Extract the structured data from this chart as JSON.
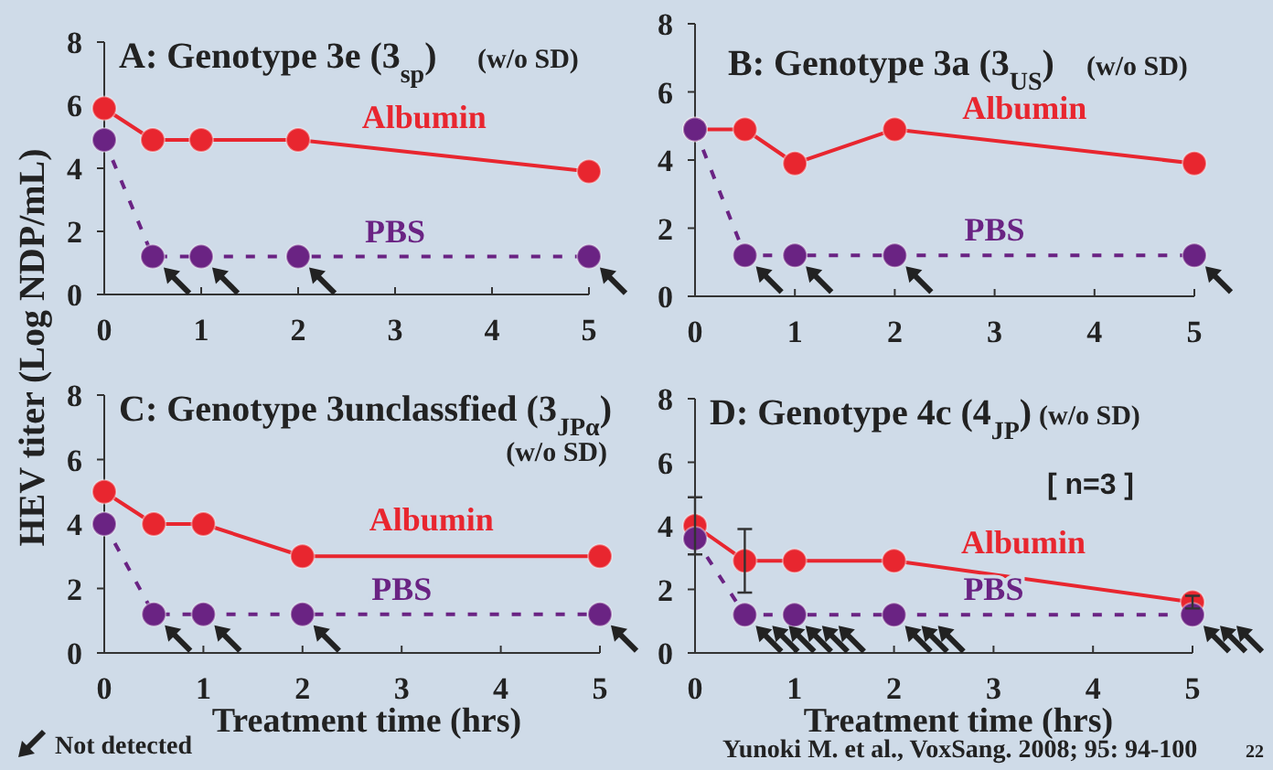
{
  "chart_data": [
    {
      "type": "line",
      "title": "A: Genotype 3e (3$_{sp}$)",
      "subtitle": "(w/o SD)",
      "ylabel": "HEV titer (Log NDP/mL)",
      "x": [
        0,
        0.5,
        1,
        2,
        5
      ],
      "xlim": [
        0,
        5
      ],
      "xticks": [
        0,
        1,
        2,
        3,
        4,
        5
      ],
      "ylim": [
        0,
        8
      ],
      "yticks": [
        0,
        2,
        4,
        6,
        8
      ],
      "marker": "circle",
      "series": [
        {
          "name": "Albumin",
          "color": "#e8262f",
          "line_style": "solid",
          "values": [
            5.9,
            4.9,
            4.9,
            4.9,
            3.9
          ]
        },
        {
          "name": "PBS",
          "color": "#6a2383",
          "line_style": "dashed",
          "values": [
            4.9,
            1.2,
            1.2,
            1.2,
            1.2
          ]
        }
      ]
    },
    {
      "type": "line",
      "title": "B: Genotype 3a (3$_{US}$)",
      "subtitle": "(w/o SD)",
      "x": [
        0,
        0.5,
        1,
        2,
        5
      ],
      "xlim": [
        0,
        5
      ],
      "xticks": [
        0,
        1,
        2,
        3,
        4,
        5
      ],
      "ylim": [
        0,
        8
      ],
      "yticks": [
        0,
        2,
        4,
        6,
        8
      ],
      "marker": "circle",
      "series": [
        {
          "name": "Albumin",
          "color": "#e8262f",
          "line_style": "solid",
          "values": [
            4.9,
            4.9,
            3.9,
            4.9,
            3.9
          ]
        },
        {
          "name": "PBS",
          "color": "#6a2383",
          "line_style": "dashed",
          "values": [
            4.9,
            1.2,
            1.2,
            1.2,
            1.2
          ]
        }
      ]
    },
    {
      "type": "line",
      "title": "C: Genotype 3unclassfied (3$_{JPα}$)",
      "subtitle": "(w/o SD)",
      "xlabel": "Treatment time (hrs)",
      "annotations": [
        "Not detected"
      ],
      "x": [
        0,
        0.5,
        1,
        2,
        5
      ],
      "xlim": [
        0,
        5
      ],
      "xticks": [
        0,
        1,
        2,
        3,
        4,
        5
      ],
      "ylim": [
        0,
        8
      ],
      "yticks": [
        0,
        2,
        4,
        6,
        8
      ],
      "marker": "circle",
      "series": [
        {
          "name": "Albumin",
          "color": "#e8262f",
          "line_style": "solid",
          "values": [
            5.0,
            4.0,
            4.0,
            3.0,
            3.0
          ]
        },
        {
          "name": "PBS",
          "color": "#6a2383",
          "line_style": "dashed",
          "values": [
            4.0,
            1.2,
            1.2,
            1.2,
            1.2
          ]
        }
      ]
    },
    {
      "type": "line",
      "title": "D: Genotype 4c (4$_{JP}$)",
      "subtitle": "(w/o SD)",
      "xlabel": "Treatment time (hrs)",
      "annotations": [
        "[ n=3 ]",
        "Yunoki M. et al., VoxSang. 2008; 95: 94-100",
        "22"
      ],
      "x": [
        0,
        0.5,
        1,
        2,
        5
      ],
      "xlim": [
        0,
        5
      ],
      "xticks": [
        0,
        1,
        2,
        3,
        4,
        5
      ],
      "ylim": [
        0,
        8
      ],
      "yticks": [
        0,
        2,
        4,
        6,
        8
      ],
      "marker": "circle",
      "series": [
        {
          "name": "Albumin",
          "color": "#e8262f",
          "line_style": "solid",
          "values": [
            4.0,
            2.9,
            2.9,
            2.9,
            1.6
          ],
          "errors": [
            0.9,
            1.0,
            null,
            null,
            0.2
          ]
        },
        {
          "name": "PBS",
          "color": "#6a2383",
          "line_style": "dashed",
          "values": [
            3.6,
            1.2,
            1.2,
            1.2,
            1.2
          ]
        }
      ]
    }
  ]
}
